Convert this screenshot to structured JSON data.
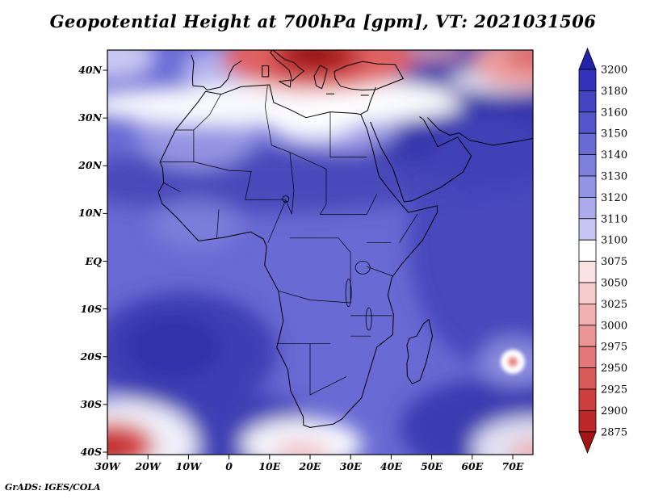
{
  "chart": {
    "title": "Geopotential Height at 700hPa [gpm], VT: 2021031506",
    "attribution": "GrADS: IGES/COLA"
  },
  "chart_data": {
    "type": "filled_contour_map",
    "title": "Geopotential Height at 700hPa [gpm], VT: 2021031506",
    "variable": "Geopotential Height",
    "level": "700hPa",
    "units": "gpm",
    "valid_time": "2021031506",
    "region": {
      "lon_min": -30,
      "lon_max": 75,
      "lat_min": -40.5,
      "lat_max": 44.5,
      "area": "Africa, Mediterranean, Arabian Peninsula, western Indian Ocean"
    },
    "x_ticks": [
      "30W",
      "20W",
      "10W",
      "0",
      "10E",
      "20E",
      "30E",
      "40E",
      "50E",
      "60E",
      "70E"
    ],
    "y_ticks": [
      "40N",
      "30N",
      "20N",
      "10N",
      "EQ",
      "10S",
      "20S",
      "30S",
      "40S"
    ],
    "colorbar": {
      "orientation": "vertical",
      "arrows": true,
      "labels": [
        "3200",
        "3180",
        "3160",
        "3150",
        "3140",
        "3130",
        "3120",
        "3110",
        "3100",
        "3075",
        "3050",
        "3025",
        "3000",
        "2975",
        "2950",
        "2925",
        "2900",
        "2875"
      ],
      "colors_top_to_bottom": [
        "#2222aa",
        "#3333bb",
        "#4444c4",
        "#5656cc",
        "#6a6ad4",
        "#7f7fdc",
        "#9494e4",
        "#aaaaec",
        "#c6c6f4",
        "#ffffff",
        "#fbe3e3",
        "#f7cccc",
        "#f2b1b1",
        "#ec9595",
        "#e47878",
        "#da5a5a",
        "#cd3e3e",
        "#bc2727",
        "#a31515"
      ]
    },
    "features": [
      "Deep low geopotential (dark red, below 2900 gpm) over the central Mediterranean / Balkans near 20E 43N",
      "High geopotential (dark blue, above 3180 gpm) over the Arabian Peninsula and northwestern Indian Ocean",
      "Broad 3140-3170 gpm field over most of the African continent, darker band across the Sahel near 15N",
      "White 3075-3100 gpm transition band across North Africa near 30-34N",
      "Small circular low with white/pink core near 70E 21S (tropical-cyclone-like feature)",
      "Red low centers at the southwest corner near 30W 40S and pink/white low near 20E 40S",
      "Reddish low at the northeast corner near 72E 43N"
    ]
  }
}
